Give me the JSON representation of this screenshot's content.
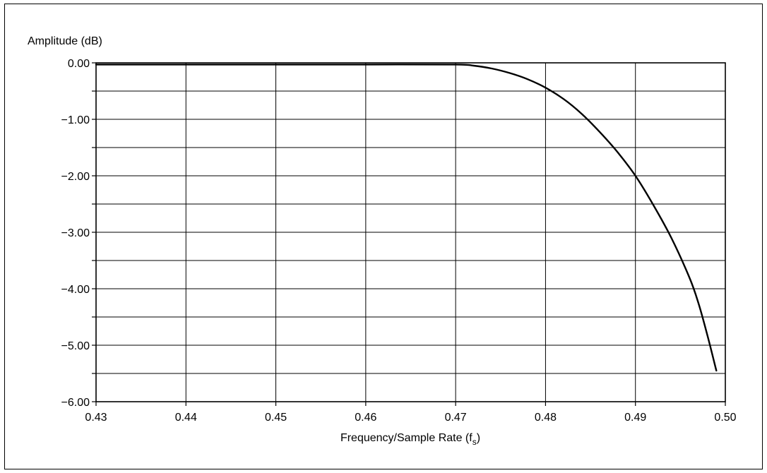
{
  "chart_data": {
    "type": "line",
    "title": "",
    "ylabel": "Amplitude (dB)",
    "xlabel": "Frequency/Sample Rate (f",
    "xlabel_subscript": "s",
    "xlabel_suffix": ")",
    "xlim": [
      0.43,
      0.5
    ],
    "ylim": [
      -6.0,
      0.0
    ],
    "x_ticks": [
      "0.43",
      "0.44",
      "0.45",
      "0.46",
      "0.47",
      "0.48",
      "0.49",
      "0.50"
    ],
    "y_ticks": [
      "0.00",
      "−1.00",
      "−2.00",
      "−3.00",
      "−4.00",
      "−5.00",
      "−6.00"
    ],
    "grid": true,
    "series": [
      {
        "color": "#000000",
        "x": [
          0.43,
          0.44,
          0.45,
          0.46,
          0.47,
          0.472,
          0.474,
          0.476,
          0.478,
          0.48,
          0.482,
          0.484,
          0.486,
          0.488,
          0.49,
          0.492,
          0.494,
          0.496,
          0.497,
          0.498,
          0.499
        ],
        "y": [
          -0.03,
          -0.03,
          -0.03,
          -0.03,
          -0.03,
          -0.05,
          -0.1,
          -0.18,
          -0.29,
          -0.44,
          -0.64,
          -0.9,
          -1.22,
          -1.58,
          -2.0,
          -2.52,
          -3.1,
          -3.8,
          -4.25,
          -4.82,
          -5.45
        ]
      }
    ]
  }
}
